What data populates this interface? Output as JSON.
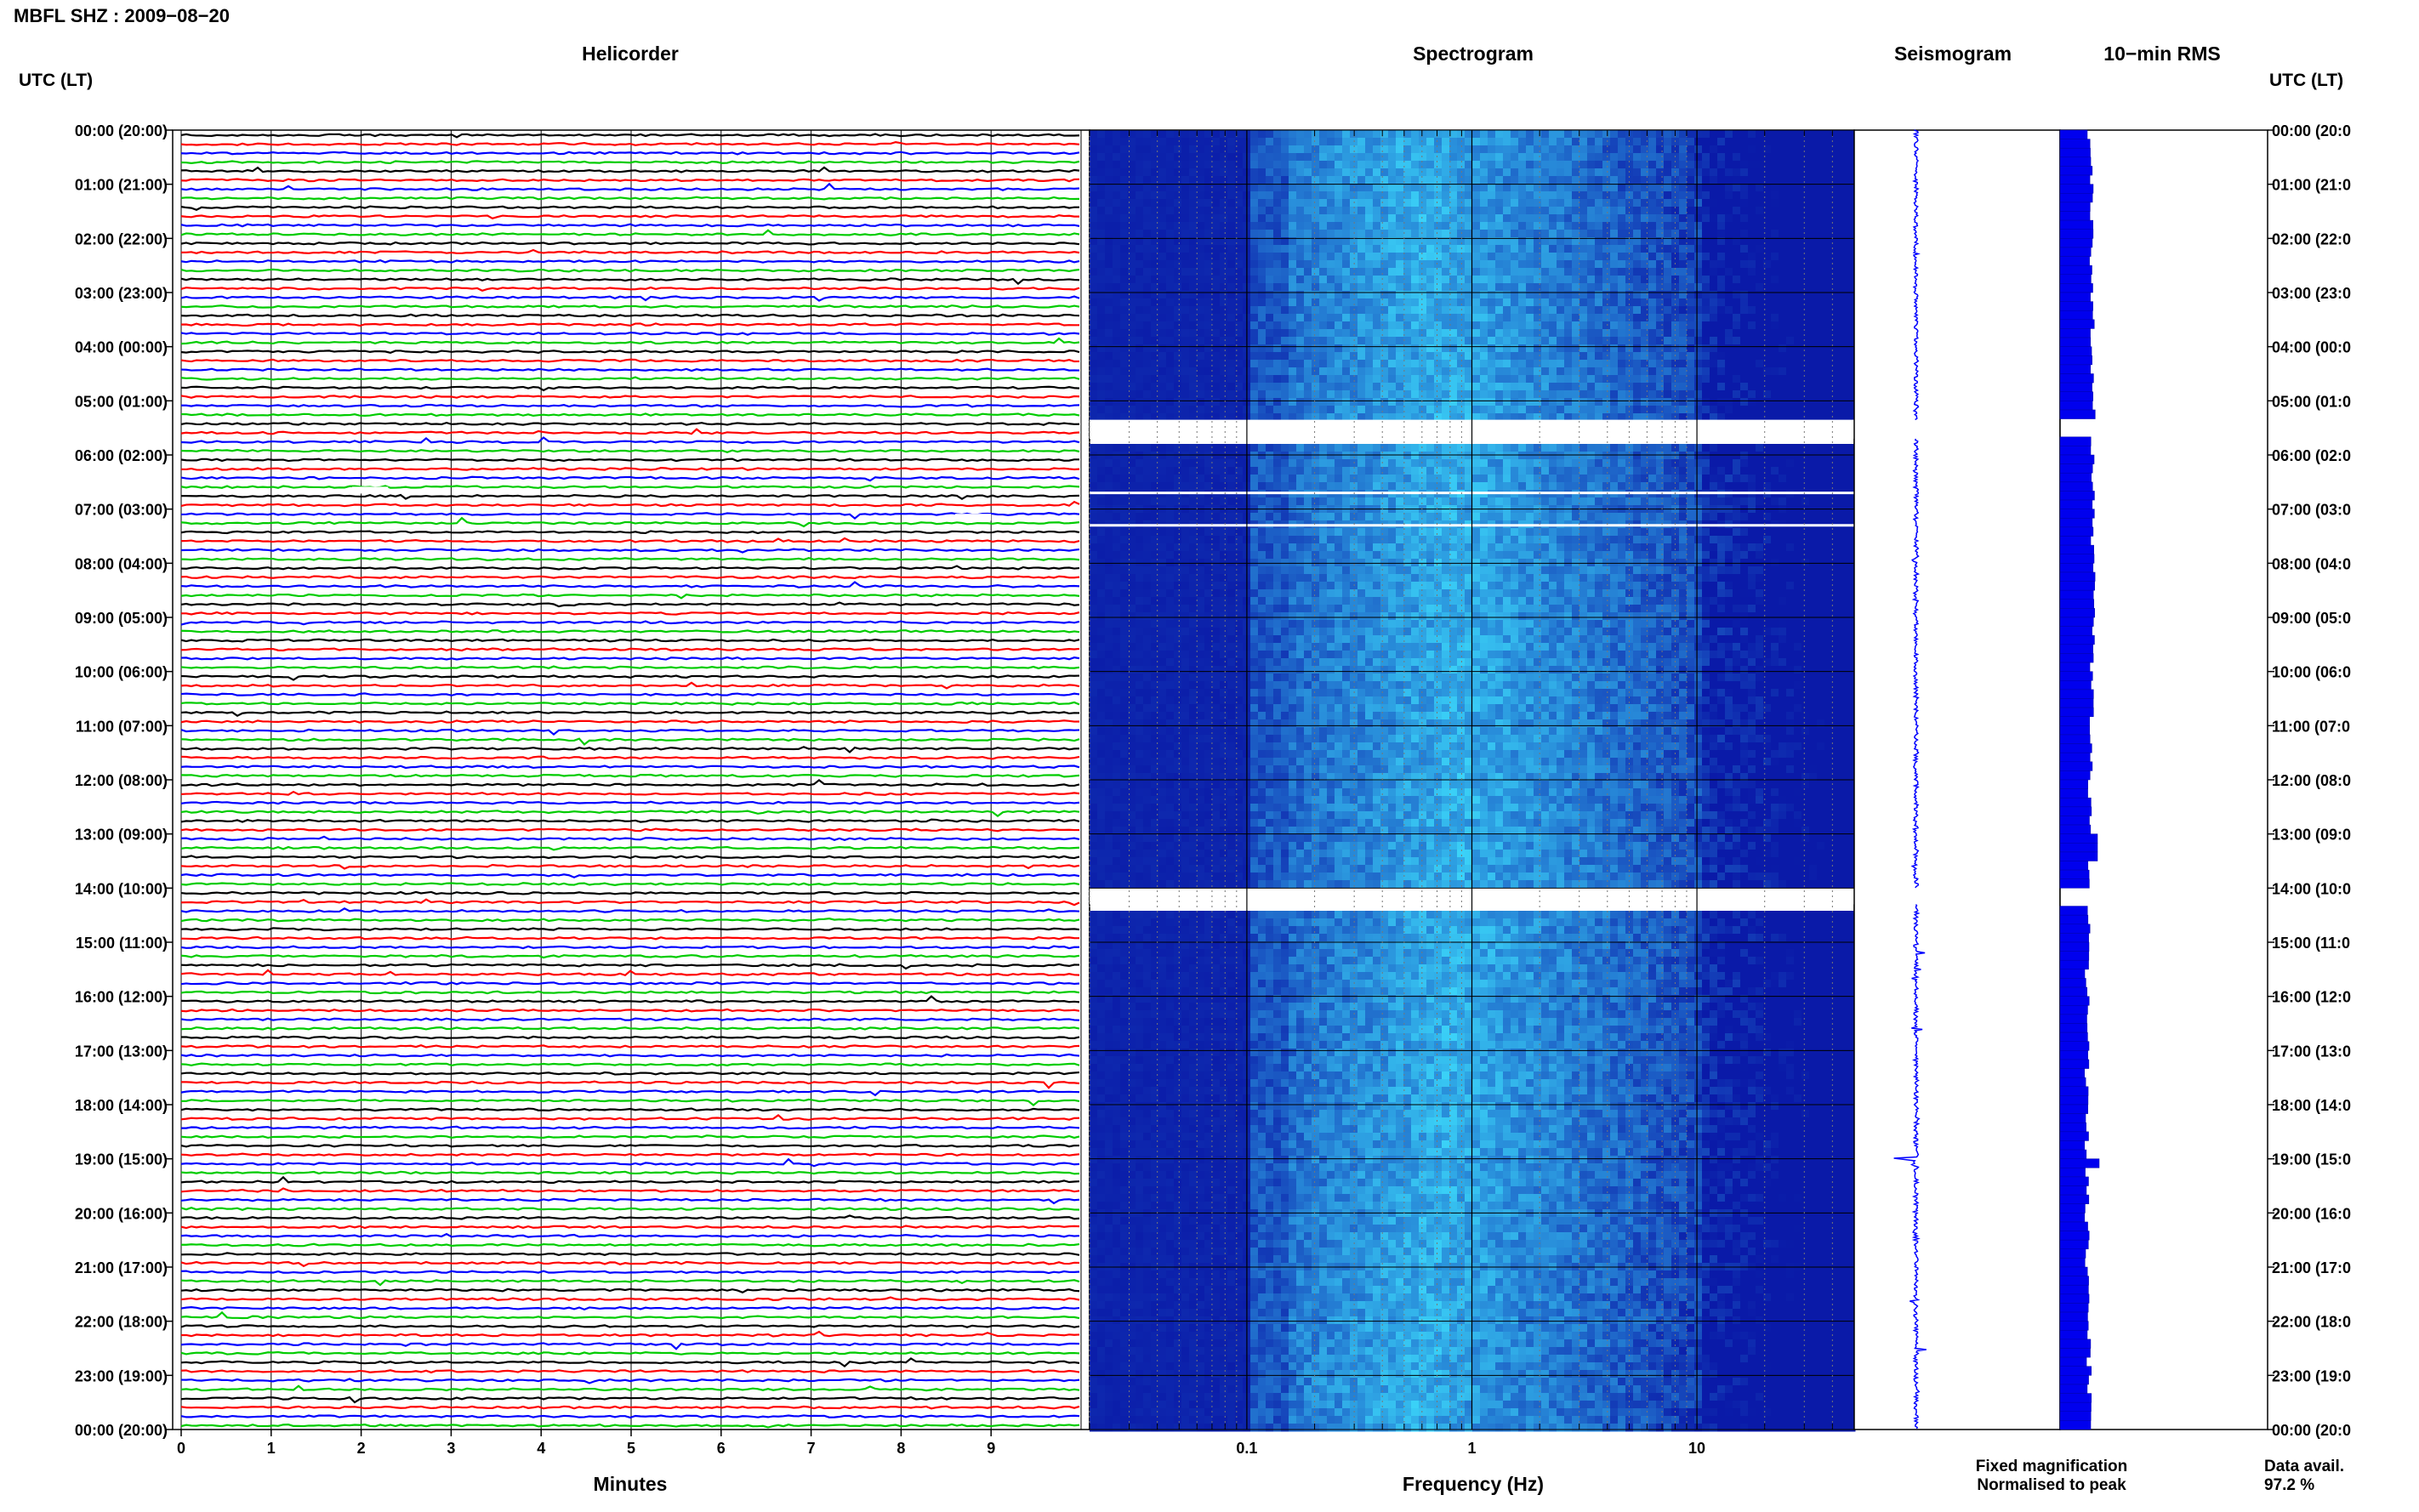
{
  "header": {
    "station_title": "MBFL SHZ : 2009−08−20"
  },
  "columns": {
    "left_axis_label": "UTC (LT)",
    "right_axis_label": "UTC (LT)",
    "helicorder": "Helicorder",
    "spectrogram": "Spectrogram",
    "seismogram": "Seismogram",
    "rms": "10−min RMS"
  },
  "hours": [
    "00:00 (20:00)",
    "01:00 (21:00)",
    "02:00 (22:00)",
    "03:00 (23:00)",
    "04:00 (00:00)",
    "05:00 (01:00)",
    "06:00 (02:00)",
    "07:00 (03:00)",
    "08:00 (04:00)",
    "09:00 (05:00)",
    "10:00 (06:00)",
    "11:00 (07:00)",
    "12:00 (08:00)",
    "13:00 (09:00)",
    "14:00 (10:00)",
    "15:00 (11:00)",
    "16:00 (12:00)",
    "17:00 (13:00)",
    "18:00 (14:00)",
    "19:00 (15:00)",
    "20:00 (16:00)",
    "21:00 (17:00)",
    "22:00 (18:00)",
    "23:00 (19:00)",
    "00:00 (20:00)"
  ],
  "right_hours": [
    "00:00 (20:0",
    "01:00 (21:0",
    "02:00 (22:0",
    "03:00 (23:0",
    "04:00 (00:0",
    "05:00 (01:0",
    "06:00 (02:0",
    "07:00 (03:0",
    "08:00 (04:0",
    "09:00 (05:0",
    "10:00 (06:0",
    "11:00 (07:0",
    "12:00 (08:0",
    "13:00 (09:0",
    "14:00 (10:0",
    "15:00 (11:0",
    "16:00 (12:0",
    "17:00 (13:0",
    "18:00 (14:0",
    "19:00 (15:0",
    "20:00 (16:0",
    "21:00 (17:0",
    "22:00 (18:0",
    "23:00 (19:0",
    "00:00 (20:0"
  ],
  "helicorder": {
    "x_label": "Minutes",
    "x_ticks": [
      0,
      1,
      2,
      3,
      4,
      5,
      6,
      7,
      8,
      9
    ],
    "trace_colors": [
      "#000000",
      "#ff0000",
      "#0000ff",
      "#00cc00"
    ],
    "traces_per_hour": 6
  },
  "spectrogram": {
    "x_label": "Frequency (Hz)",
    "x_ticks": [
      {
        "value": 0.1,
        "label": "0.1"
      },
      {
        "value": 1,
        "label": "1"
      },
      {
        "value": 10,
        "label": "10"
      }
    ],
    "fmin": 0.02,
    "fmax": 50,
    "gaps_hours": [
      [
        5.35,
        5.7
      ],
      [
        14.0,
        14.3
      ]
    ],
    "color_low": "#0a1aa8",
    "color_high": "#3fe3ff"
  },
  "legend": {
    "fixed": "Fixed magnification",
    "fixed_color": "#0000ff",
    "normalised": "Normalised to peak",
    "normalised_color": "#ff0000"
  },
  "data_availability": {
    "label": "Data avail.",
    "value": "97.2 %"
  },
  "chart_data": {
    "type": "heatmap",
    "title": "MBFL SHZ : 2009−08−20",
    "xlabel": "Frequency (Hz)",
    "ylabel": "UTC (LT)",
    "xlim": [
      0.02,
      50
    ],
    "x_scale": "log",
    "ylim": [
      0,
      24
    ],
    "data_available_percent": 97.2,
    "data_gaps_utc_hours": [
      [
        5.35,
        5.7
      ],
      [
        14.0,
        14.3
      ]
    ]
  }
}
